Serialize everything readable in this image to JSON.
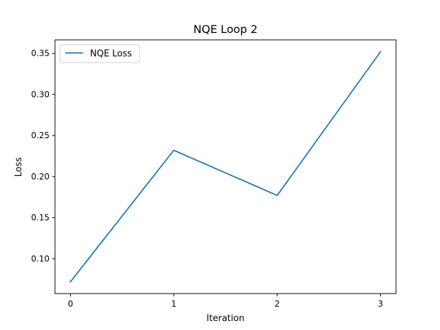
{
  "chart_data": {
    "type": "line",
    "title": "NQE Loop 2",
    "xlabel": "Iteration",
    "ylabel": "Loss",
    "x": [
      0,
      1,
      2,
      3
    ],
    "series": [
      {
        "name": "NQE Loss",
        "values": [
          0.072,
          0.232,
          0.177,
          0.352
        ],
        "color": "#1f77b4"
      }
    ],
    "xlim": [
      -0.15,
      3.15
    ],
    "ylim": [
      0.0576,
      0.3664
    ],
    "xticks": [
      0,
      1,
      2,
      3
    ],
    "xtick_labels": [
      "0",
      "1",
      "2",
      "3"
    ],
    "yticks": [
      0.1,
      0.15,
      0.2,
      0.25,
      0.3,
      0.35
    ],
    "ytick_labels": [
      "0.10",
      "0.15",
      "0.20",
      "0.25",
      "0.30",
      "0.35"
    ],
    "grid": false,
    "legend_position": "top-left"
  }
}
